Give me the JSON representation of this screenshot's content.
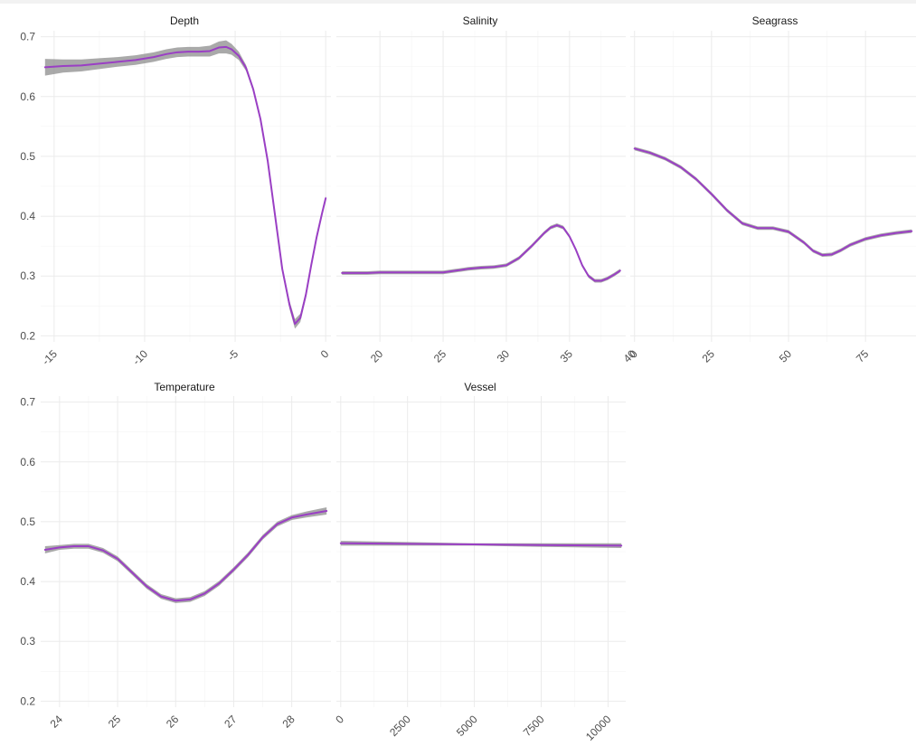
{
  "chart_data": [
    {
      "type": "line",
      "title": "Depth",
      "xlim": [
        -15.5,
        0.05
      ],
      "ylim": [
        0.19,
        0.71
      ],
      "xticks": [
        -15,
        -10,
        -5,
        0
      ],
      "yticks": [
        0.2,
        0.3,
        0.4,
        0.5,
        0.6,
        0.7
      ],
      "line_color": "#9a3fc4",
      "band_color": "#8c8c8c",
      "series": [
        {
          "x": [
            -15.5,
            -14.5,
            -13.5,
            -12.5,
            -11.5,
            -10.5,
            -9.5,
            -8.8,
            -8.2,
            -7.6,
            -7.0,
            -6.4,
            -5.9,
            -5.5,
            -5.2,
            -4.8,
            -4.4,
            -4.0,
            -3.6,
            -3.2,
            -2.8,
            -2.4,
            -2.0,
            -1.7,
            -1.4,
            -1.1,
            -0.8,
            -0.5,
            -0.2,
            0.0
          ],
          "y": [
            0.649,
            0.651,
            0.652,
            0.655,
            0.658,
            0.661,
            0.666,
            0.671,
            0.674,
            0.675,
            0.675,
            0.676,
            0.682,
            0.683,
            0.679,
            0.668,
            0.648,
            0.612,
            0.562,
            0.492,
            0.402,
            0.312,
            0.252,
            0.22,
            0.23,
            0.268,
            0.318,
            0.365,
            0.405,
            0.43
          ],
          "band": [
            0.014,
            0.011,
            0.01,
            0.009,
            0.008,
            0.008,
            0.008,
            0.008,
            0.008,
            0.008,
            0.008,
            0.009,
            0.01,
            0.011,
            0.009,
            0.007,
            0.005,
            0.004,
            0.004,
            0.004,
            0.004,
            0.005,
            0.007,
            0.008,
            0.007,
            0.006,
            0.005,
            0.004,
            0.004,
            0.004
          ]
        }
      ]
    },
    {
      "type": "line",
      "title": "Salinity",
      "xlim": [
        16.9,
        39.1
      ],
      "ylim": [
        0.19,
        0.71
      ],
      "xticks": [
        20,
        25,
        30,
        35,
        40
      ],
      "yticks": [
        0.2,
        0.3,
        0.4,
        0.5,
        0.6,
        0.7
      ],
      "line_color": "#9a3fc4",
      "band_color": "#8c8c8c",
      "series": [
        {
          "x": [
            17.0,
            18.0,
            19.0,
            20.0,
            21.0,
            22.0,
            23.0,
            24.0,
            25.0,
            26.0,
            27.0,
            28.0,
            29.0,
            30.0,
            31.0,
            32.0,
            33.0,
            33.5,
            34.0,
            34.5,
            35.0,
            35.5,
            36.0,
            36.5,
            37.0,
            37.5,
            38.0,
            38.5,
            39.0
          ],
          "y": [
            0.305,
            0.305,
            0.305,
            0.306,
            0.306,
            0.306,
            0.306,
            0.306,
            0.306,
            0.309,
            0.312,
            0.314,
            0.315,
            0.318,
            0.33,
            0.35,
            0.372,
            0.381,
            0.385,
            0.381,
            0.366,
            0.344,
            0.318,
            0.3,
            0.292,
            0.292,
            0.296,
            0.302,
            0.309
          ]
        }
      ]
    },
    {
      "type": "line",
      "title": "Seagrass",
      "xlim": [
        0,
        90
      ],
      "ylim": [
        0.19,
        0.71
      ],
      "xticks": [
        0,
        25,
        50,
        75
      ],
      "yticks": [
        0.2,
        0.3,
        0.4,
        0.5,
        0.6,
        0.7
      ],
      "line_color": "#9a3fc4",
      "band_color": "#8c8c8c",
      "series": [
        {
          "x": [
            0,
            5,
            10,
            15,
            20,
            25,
            30,
            35,
            40,
            45,
            50,
            55,
            58,
            61,
            64,
            67,
            70,
            75,
            80,
            85,
            90
          ],
          "y": [
            0.513,
            0.506,
            0.496,
            0.482,
            0.462,
            0.437,
            0.41,
            0.388,
            0.38,
            0.38,
            0.374,
            0.356,
            0.342,
            0.335,
            0.336,
            0.343,
            0.352,
            0.362,
            0.368,
            0.372,
            0.375
          ]
        }
      ]
    },
    {
      "type": "line",
      "title": "Temperature",
      "xlim": [
        23.75,
        28.6
      ],
      "ylim": [
        0.19,
        0.71
      ],
      "xticks": [
        24,
        25,
        26,
        27,
        28
      ],
      "yticks": [
        0.2,
        0.3,
        0.4,
        0.5,
        0.6,
        0.7
      ],
      "line_color": "#9a3fc4",
      "band_color": "#8c8c8c",
      "series": [
        {
          "x": [
            23.75,
            24.0,
            24.25,
            24.5,
            24.75,
            25.0,
            25.25,
            25.5,
            25.75,
            26.0,
            26.25,
            26.5,
            26.75,
            27.0,
            27.25,
            27.5,
            27.75,
            28.0,
            28.25,
            28.6
          ],
          "y": [
            0.453,
            0.457,
            0.459,
            0.459,
            0.452,
            0.438,
            0.415,
            0.392,
            0.375,
            0.368,
            0.37,
            0.38,
            0.397,
            0.42,
            0.445,
            0.474,
            0.496,
            0.507,
            0.512,
            0.518
          ],
          "band": [
            0.006,
            0.004,
            0.004,
            0.004,
            0.004,
            0.004,
            0.004,
            0.004,
            0.004,
            0.004,
            0.004,
            0.004,
            0.004,
            0.004,
            0.004,
            0.004,
            0.004,
            0.004,
            0.005,
            0.006
          ]
        }
      ]
    },
    {
      "type": "line",
      "title": "Vessel",
      "xlim": [
        0,
        10500
      ],
      "ylim": [
        0.19,
        0.71
      ],
      "xticks": [
        0,
        2500,
        5000,
        7500,
        10000
      ],
      "yticks": [
        0.2,
        0.3,
        0.4,
        0.5,
        0.6,
        0.7
      ],
      "line_color": "#9a3fc4",
      "band_color": "#8c8c8c",
      "series": [
        {
          "x": [
            0,
            2500,
            5000,
            7500,
            10500
          ],
          "y": [
            0.464,
            0.463,
            0.462,
            0.461,
            0.46
          ],
          "band": [
            0.004,
            0.003,
            0.002,
            0.003,
            0.004
          ]
        }
      ]
    }
  ]
}
